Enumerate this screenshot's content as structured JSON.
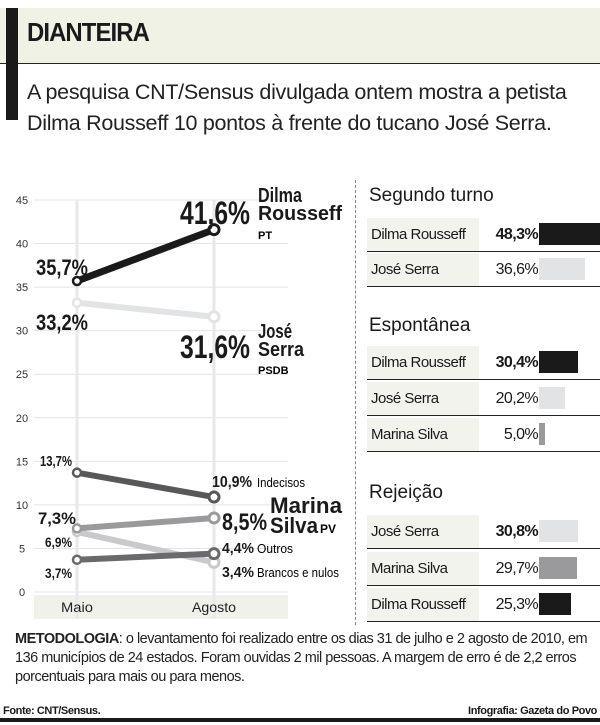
{
  "header": {
    "title": "DIANTEIRA",
    "lede": "A pesquisa CNT/Sensus divulgada ontem mostra a petista Dilma Rousseff 10 pontos à frente do tucano José Serra."
  },
  "chart_data": [
    {
      "type": "line",
      "x": [
        "Maio",
        "Agosto"
      ],
      "ylim": [
        0,
        45
      ],
      "yticks": [
        0,
        5,
        10,
        15,
        20,
        25,
        30,
        35,
        40,
        45
      ],
      "grid": true,
      "series": [
        {
          "name": "Dilma Rousseff",
          "party": "PT",
          "values": [
            35.7,
            41.6
          ],
          "labels": [
            "35,7%",
            "41,6%"
          ],
          "color": "#1a1a1a"
        },
        {
          "name": "José Serra",
          "party": "PSDB",
          "values": [
            33.2,
            31.6
          ],
          "labels": [
            "33,2%",
            "31,6%"
          ],
          "color": "#e2e3e5"
        },
        {
          "name": "Indecisos",
          "values": [
            13.7,
            10.9
          ],
          "labels": [
            "13,7%",
            "10,9%"
          ],
          "color": "#58585a"
        },
        {
          "name": "Marina Silva",
          "party": "PV",
          "values": [
            7.3,
            8.5
          ],
          "labels": [
            "7,3%",
            "8,5%"
          ],
          "color": "#9a9a9c"
        },
        {
          "name": "Brancos e nulos",
          "values": [
            6.9,
            3.4
          ],
          "labels": [
            "6,9%",
            "3,4%"
          ],
          "color": "#c9c9cb"
        },
        {
          "name": "Outros",
          "values": [
            3.7,
            4.4
          ],
          "labels": [
            "3,7%",
            "4,4%"
          ],
          "color": "#6a6a6c"
        }
      ]
    },
    {
      "type": "bar",
      "title": "Segundo turno",
      "rows": [
        {
          "name": "Dilma Rousseff",
          "value": 48.3,
          "label": "48,3%",
          "bold": true,
          "color": "#1a1a1a"
        },
        {
          "name": "José Serra",
          "value": 36.6,
          "label": "36,6%",
          "bold": false,
          "color": "#e2e3e5"
        }
      ]
    },
    {
      "type": "bar",
      "title": "Espontânea",
      "rows": [
        {
          "name": "Dilma Rousseff",
          "value": 30.4,
          "label": "30,4%",
          "bold": true,
          "color": "#1a1a1a"
        },
        {
          "name": "José Serra",
          "value": 20.2,
          "label": "20,2%",
          "bold": false,
          "color": "#e2e3e5"
        },
        {
          "name": "Marina Silva",
          "value": 5.0,
          "label": "5,0%",
          "bold": false,
          "color": "#9a9a9c"
        }
      ]
    },
    {
      "type": "bar",
      "title": "Rejeição",
      "rows": [
        {
          "name": "José Serra",
          "value": 30.8,
          "label": "30,8%",
          "bold": true,
          "color": "#e2e3e5"
        },
        {
          "name": "Marina Silva",
          "value": 29.7,
          "label": "29,7%",
          "bold": false,
          "color": "#9a9a9c"
        },
        {
          "name": "Dilma Rousseff",
          "value": 25.3,
          "label": "25,3%",
          "bold": false,
          "color": "#1a1a1a"
        }
      ]
    }
  ],
  "footer": {
    "method_label": "METODOLOGIA",
    "method_text": ": o levantamento foi realizado entre os dias 31 de julho e 2 agosto de 2010, em 136 municípios de 24 estados. Foram ouvidas 2 mil pessoas. A margem de erro é de 2,2 erros porcentuais para mais ou para menos.",
    "source": "Fonte: CNT/Sensus.",
    "credit": "Infografia: Gazeta do Povo"
  }
}
